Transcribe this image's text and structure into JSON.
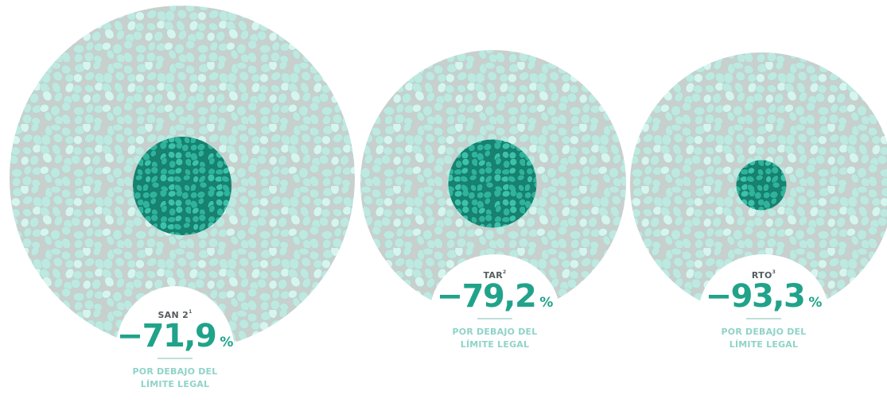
{
  "colors": {
    "outer_fill": "#c5efe7",
    "outer_pebble": "#bde9e1",
    "outer_pebble_light": "#d6f5ef",
    "grout": "#c9cfcd",
    "inner_fill": "#1f9e8a",
    "inner_pebble": "#2fb39c",
    "value_text": "#20a38a",
    "name_text": "#555c5e",
    "note_text": "#8fd3c8"
  },
  "chart_data": {
    "type": "proportional-circles",
    "series": [
      {
        "name": "SAN 2",
        "ref": "1",
        "value": -71.9,
        "value_label": "−71,9",
        "unit": "%",
        "note": [
          "POR DEBAJO DEL",
          "LÍMITE LEGAL"
        ]
      },
      {
        "name": "TAR",
        "ref": "2",
        "value": -79.2,
        "value_label": "−79,2",
        "unit": "%",
        "note": [
          "POR DEBAJO DEL",
          "LÍMITE LEGAL"
        ]
      },
      {
        "name": "RTO",
        "ref": "3",
        "value": -93.3,
        "value_label": "−93,3",
        "unit": "%",
        "note": [
          "POR DEBAJO DEL",
          "LÍMITE LEGAL"
        ]
      }
    ]
  }
}
